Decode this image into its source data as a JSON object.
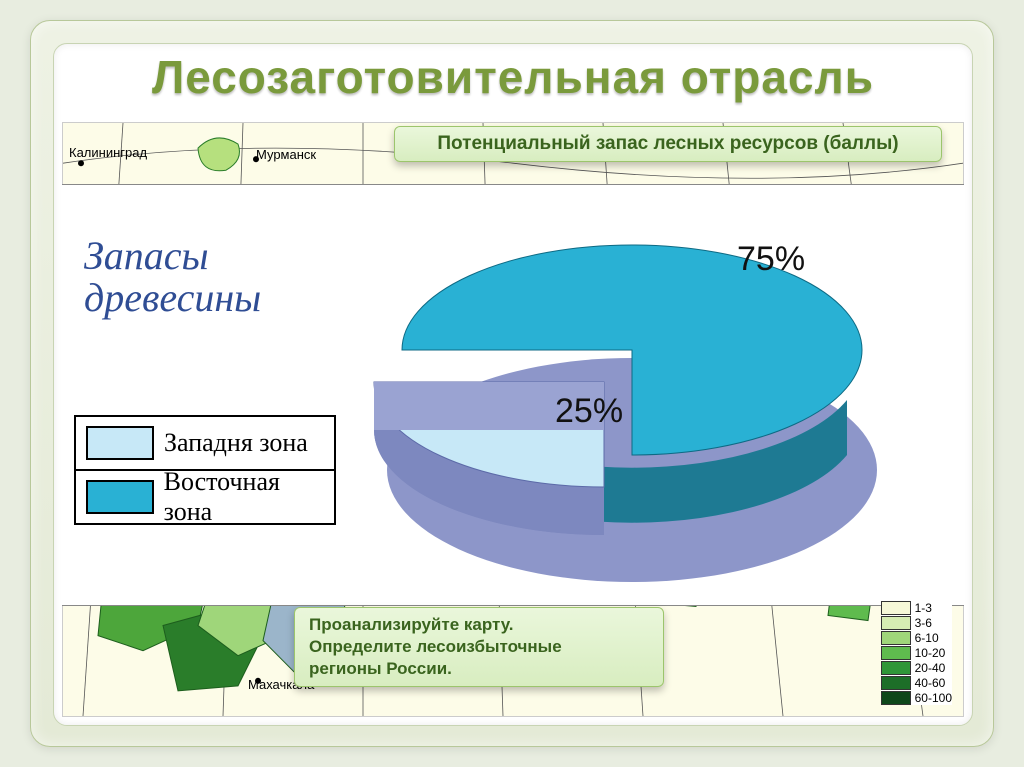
{
  "title": "Лесозаготовительная  отрасль",
  "banner_top": "Потенциальный  запас  лесных  ресурсов (баллы)",
  "banner_bottom_l1": "Проанализируйте  карту.",
  "banner_bottom_l2": "Определите  лесоизбыточные",
  "banner_bottom_l3": "регионы России.",
  "chart": {
    "type": "pie-3d-exploded",
    "title_l1": "Запасы",
    "title_l2": "древесины",
    "title_color": "#2f4d94",
    "title_fontsize": 40,
    "slices": [
      {
        "label": "Западня зона",
        "value": 25,
        "display": "25%",
        "top_color": "#c7e8f7",
        "side_color": "#7d88bf"
      },
      {
        "label": "Восточная зона",
        "value": 75,
        "display": "75%",
        "top_color": "#29b1d4",
        "side_color": "#1e7a93"
      }
    ],
    "floor_color": "#8d96c9",
    "value_fontsize": 34
  },
  "legend": [
    {
      "label": "Западня зона",
      "color": "#c7e8f7"
    },
    {
      "label": "Восточная зона",
      "color": "#29b1d4"
    }
  ],
  "map_labels": {
    "city1": "Калининград",
    "city2": "Мурманск",
    "city3": "Махачкала"
  },
  "map_colors": {
    "grid": "#555555",
    "land": "#fdfce8",
    "water": "#ffffff",
    "region_green1": "#b6e07e",
    "region_green2": "#4da63b",
    "region_green3": "#2a7d2a",
    "region_pale": "#d1e8c3",
    "region_blue": "#9bb5ca"
  },
  "map_legend": [
    {
      "range": "1-3",
      "color": "#f6f8d8"
    },
    {
      "range": "3-6",
      "color": "#d6edb3"
    },
    {
      "range": "6-10",
      "color": "#9fd67a"
    },
    {
      "range": "10-20",
      "color": "#5fbb4e"
    },
    {
      "range": "20-40",
      "color": "#2f9638"
    },
    {
      "range": "40-60",
      "color": "#1d6e28"
    },
    {
      "range": "60-100",
      "color": "#0e471a"
    }
  ]
}
